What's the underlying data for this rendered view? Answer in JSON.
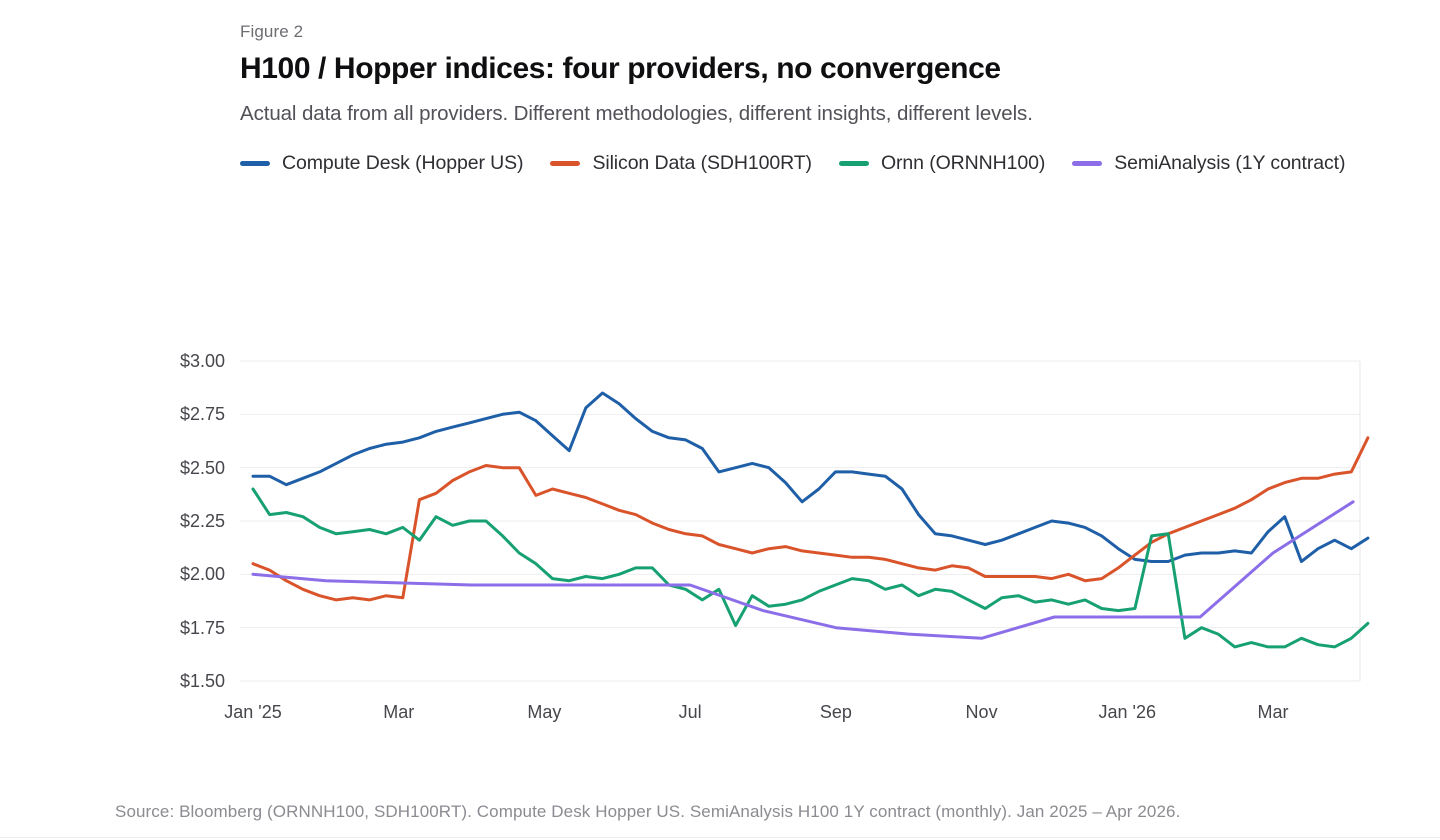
{
  "figure_label": "Figure 2",
  "title": "H100 / Hopper indices: four providers, no convergence",
  "subtitle": "Actual data from all providers. Different methodologies, different insights, different levels.",
  "source": "Source: Bloomberg (ORNNH100, SDH100RT). Compute Desk Hopper US. SemiAnalysis H100 1Y contract (monthly). Jan 2025 – Apr 2026.",
  "chart_data": {
    "type": "line",
    "title": "H100 / Hopper indices: four providers, no convergence",
    "x_unit": "months since Jan 2025",
    "x_range": [
      0,
      15.3
    ],
    "ylim": [
      1.5,
      3.0
    ],
    "grid": "horizontal",
    "legend_position": "top",
    "y_ticks": [
      {
        "value": 3.0,
        "label": "$3.00"
      },
      {
        "value": 2.75,
        "label": "$2.75"
      },
      {
        "value": 2.5,
        "label": "$2.50"
      },
      {
        "value": 2.25,
        "label": "$2.25"
      },
      {
        "value": 2.0,
        "label": "$2.00"
      },
      {
        "value": 1.75,
        "label": "$1.75"
      },
      {
        "value": 1.5,
        "label": "$1.50"
      }
    ],
    "x_ticks": [
      {
        "month": 0,
        "label": "Jan '25"
      },
      {
        "month": 2,
        "label": "Mar"
      },
      {
        "month": 4,
        "label": "May"
      },
      {
        "month": 6,
        "label": "Jul"
      },
      {
        "month": 8,
        "label": "Sep"
      },
      {
        "month": 10,
        "label": "Nov"
      },
      {
        "month": 12,
        "label": "Jan '26"
      },
      {
        "month": 14,
        "label": "Mar"
      }
    ],
    "series": [
      {
        "name": "Compute Desk (Hopper US)",
        "color": "#1f5fa7",
        "cadence": "weekly",
        "x_step": 0.2284,
        "values": [
          2.46,
          2.46,
          2.42,
          2.45,
          2.48,
          2.52,
          2.56,
          2.59,
          2.61,
          2.62,
          2.64,
          2.67,
          2.69,
          2.71,
          2.73,
          2.75,
          2.76,
          2.72,
          2.65,
          2.58,
          2.78,
          2.85,
          2.8,
          2.73,
          2.67,
          2.64,
          2.63,
          2.59,
          2.48,
          2.5,
          2.52,
          2.5,
          2.43,
          2.34,
          2.4,
          2.48,
          2.48,
          2.47,
          2.46,
          2.4,
          2.28,
          2.19,
          2.18,
          2.16,
          2.14,
          2.16,
          2.19,
          2.22,
          2.25,
          2.24,
          2.22,
          2.18,
          2.12,
          2.07,
          2.06,
          2.06,
          2.09,
          2.1,
          2.1,
          2.11,
          2.1,
          2.2,
          2.27,
          2.06,
          2.12,
          2.16,
          2.12,
          2.17
        ]
      },
      {
        "name": "Silicon Data (SDH100RT)",
        "color": "#d9542b",
        "cadence": "weekly",
        "x_step": 0.2284,
        "values": [
          2.05,
          2.02,
          1.97,
          1.93,
          1.9,
          1.88,
          1.89,
          1.88,
          1.9,
          1.89,
          2.35,
          2.38,
          2.44,
          2.48,
          2.51,
          2.5,
          2.5,
          2.37,
          2.4,
          2.38,
          2.36,
          2.33,
          2.3,
          2.28,
          2.24,
          2.21,
          2.19,
          2.18,
          2.14,
          2.12,
          2.1,
          2.12,
          2.13,
          2.11,
          2.1,
          2.09,
          2.08,
          2.08,
          2.07,
          2.05,
          2.03,
          2.02,
          2.04,
          2.03,
          1.99,
          1.99,
          1.99,
          1.99,
          1.98,
          2.0,
          1.97,
          1.98,
          2.03,
          2.09,
          2.15,
          2.19,
          2.22,
          2.25,
          2.28,
          2.31,
          2.35,
          2.4,
          2.43,
          2.45,
          2.45,
          2.47,
          2.48,
          2.64
        ]
      },
      {
        "name": "Ornn (ORNNH100)",
        "color": "#17a173",
        "cadence": "weekly",
        "x_step": 0.2284,
        "values": [
          2.4,
          2.28,
          2.29,
          2.27,
          2.22,
          2.19,
          2.2,
          2.21,
          2.19,
          2.22,
          2.16,
          2.27,
          2.23,
          2.25,
          2.25,
          2.18,
          2.1,
          2.05,
          1.98,
          1.97,
          1.99,
          1.98,
          2.0,
          2.03,
          2.03,
          1.95,
          1.93,
          1.88,
          1.93,
          1.76,
          1.9,
          1.85,
          1.86,
          1.88,
          1.92,
          1.95,
          1.98,
          1.97,
          1.93,
          1.95,
          1.9,
          1.93,
          1.92,
          1.88,
          1.84,
          1.89,
          1.9,
          1.87,
          1.88,
          1.86,
          1.88,
          1.84,
          1.83,
          1.84,
          2.18,
          2.19,
          1.7,
          1.75,
          1.72,
          1.66,
          1.68,
          1.66,
          1.66,
          1.7,
          1.67,
          1.66,
          1.7,
          1.77
        ]
      },
      {
        "name": "SemiAnalysis (1Y contract)",
        "color": "#8b6ee8",
        "cadence": "monthly",
        "x": [
          0,
          1,
          2,
          3,
          4,
          5,
          6,
          7,
          8,
          9,
          10,
          11,
          12,
          13,
          14,
          15.1
        ],
        "values": [
          2.0,
          1.97,
          1.96,
          1.95,
          1.95,
          1.95,
          1.95,
          1.83,
          1.75,
          1.72,
          1.7,
          1.8,
          1.8,
          1.8,
          2.1,
          2.34
        ]
      }
    ]
  }
}
